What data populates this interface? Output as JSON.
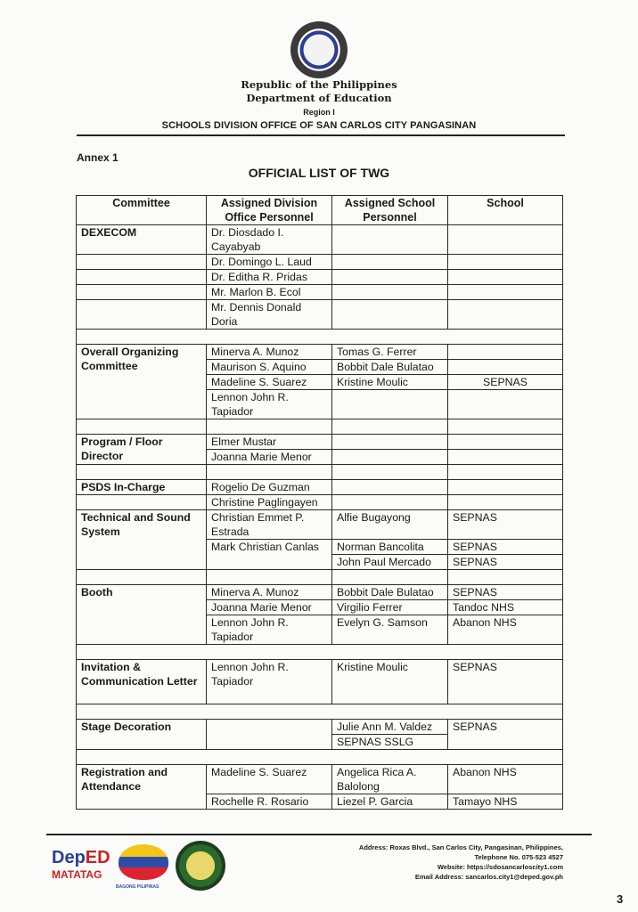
{
  "header": {
    "republic": "Republic of the Philippines",
    "department": "Department of Education",
    "region": "Region I",
    "division": "SCHOOLS DIVISION OFFICE OF SAN CARLOS CITY PANGASINAN",
    "seal_text": "KAGAWARAN NG EDUKASYON"
  },
  "annex": "Annex 1",
  "title": "OFFICIAL LIST OF TWG",
  "columns": [
    "Committee",
    "Assigned Division Office Personnel",
    "Assigned School Personnel",
    "School"
  ],
  "dexecom": {
    "name": "DEXECOM",
    "people": [
      "Dr. Diosdado I. Cayabyab",
      "Dr. Domingo L. Laud",
      "Dr. Editha R. Pridas",
      "Mr. Marlon B. Ecol",
      "Mr. Dennis Donald Doria"
    ]
  },
  "ooc": {
    "name": "Overall Organizing Committee",
    "division": [
      "Minerva A. Munoz",
      "Maurison S. Aquino",
      "Madeline S. Suarez",
      "Lennon John R. Tapiador"
    ],
    "school": [
      "Tomas G. Ferrer",
      "Bobbit Dale Bulatao",
      "Kristine Moulic"
    ],
    "schools": [
      "SEPNAS"
    ]
  },
  "program": {
    "name": "Program / Floor Director",
    "division": [
      "Elmer Mustar",
      "Joanna Marie Menor"
    ]
  },
  "psds": {
    "name": "PSDS In-Charge",
    "division": [
      "Rogelio De Guzman",
      "Christine Paglingayen"
    ]
  },
  "technical": {
    "name": "Technical and Sound System",
    "division": [
      "Christian Emmet P. Estrada",
      "Mark Christian Canlas"
    ],
    "school": [
      "Alfie Bugayong",
      "Norman Bancolita",
      "John Paul Mercado"
    ],
    "schools": [
      "SEPNAS",
      "SEPNAS",
      "SEPNAS"
    ]
  },
  "booth": {
    "name": "Booth",
    "division": [
      "Minerva A. Munoz",
      "Joanna Marie Menor",
      "Lennon John R. Tapiador"
    ],
    "school": [
      "Bobbit Dale Bulatao",
      "Virgilio Ferrer",
      "Evelyn G. Samson"
    ],
    "schools": [
      "SEPNAS",
      "Tandoc NHS",
      "Abanon NHS"
    ]
  },
  "invitation": {
    "name": "Invitation & Communication Letter",
    "division": [
      "Lennon John R. Tapiador"
    ],
    "school": [
      "Kristine Moulic"
    ],
    "schools": [
      "SEPNAS"
    ]
  },
  "stage": {
    "name": "Stage Decoration",
    "school": [
      "Julie Ann M. Valdez",
      "SEPNAS SSLG"
    ],
    "schools": [
      "SEPNAS"
    ]
  },
  "registration": {
    "name": "Registration and Attendance",
    "division": [
      "Madeline S. Suarez",
      "Rochelle R. Rosario"
    ],
    "school": [
      "Angelica Rica A. Balolong",
      "Liezel P. Garcia"
    ],
    "schools": [
      "Abanon NHS",
      "Tamayo NHS"
    ]
  },
  "footer": {
    "logo1": "DepED",
    "logo1_sub": "MATATAG",
    "logo2": "BAGONG PILIPINAS",
    "address": "Address: Roxas Blvd., San Carlos City, Pangasinan, Philippines,",
    "telephone": "Telephone No. 075-523 4527",
    "website": "Website: https://sdosancarloscity1.com",
    "email": "Email Address: sancarlos.city1@deped.gov.ph",
    "page_number": "3"
  }
}
